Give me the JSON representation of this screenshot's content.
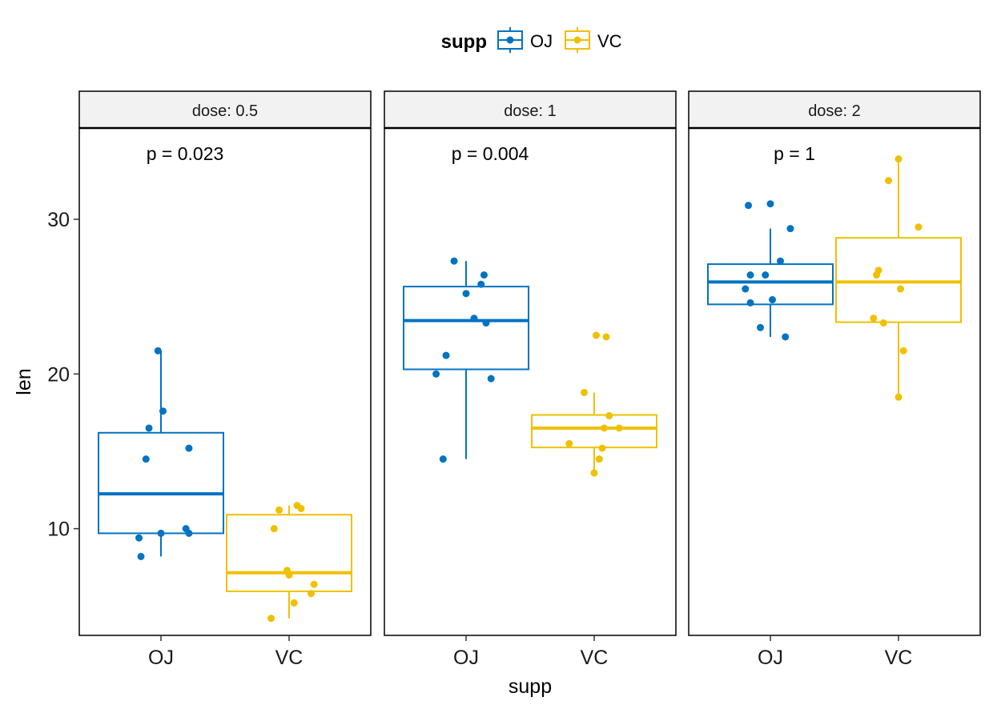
{
  "colors": {
    "OJ": "#0073C2",
    "VC": "#EFC000"
  },
  "legend": {
    "title": "supp",
    "items": [
      "OJ",
      "VC"
    ],
    "position": "top"
  },
  "chart_data": {
    "type": "boxplot",
    "xlabel": "supp",
    "ylabel": "len",
    "ylim": [
      3.1,
      35.9
    ],
    "yticks": [
      10,
      20,
      30
    ],
    "categories": [
      "OJ",
      "VC"
    ],
    "grid": false,
    "facets": [
      {
        "label": "dose: 0.5",
        "pvalue": "p = 0.023",
        "groups": [
          {
            "supp": "OJ",
            "whisker_low": 8.2,
            "q1": 9.7,
            "median": 12.25,
            "q3": 16.2,
            "whisker_high": 21.5,
            "points": [
              [
                -0.22,
                9.4
              ],
              [
                -0.2,
                8.2
              ],
              [
                -0.15,
                14.5
              ],
              [
                -0.12,
                16.5
              ],
              [
                0,
                9.7
              ],
              [
                0.02,
                17.6
              ],
              [
                0.25,
                10.0
              ],
              [
                0.28,
                9.7
              ],
              [
                0.28,
                15.2
              ],
              [
                -0.03,
                21.5
              ]
            ]
          },
          {
            "supp": "VC",
            "whisker_low": 4.2,
            "q1": 5.95,
            "median": 7.15,
            "q3": 10.9,
            "whisker_high": 11.5,
            "points": [
              [
                -0.18,
                4.2
              ],
              [
                -0.15,
                10.0
              ],
              [
                -0.1,
                11.2
              ],
              [
                -0.02,
                7.3
              ],
              [
                0,
                7.0
              ],
              [
                0.05,
                5.2
              ],
              [
                0.08,
                11.5
              ],
              [
                0.12,
                11.3
              ],
              [
                0.25,
                6.4
              ],
              [
                0.22,
                5.8
              ]
            ]
          }
        ]
      },
      {
        "label": "dose: 1",
        "pvalue": "p = 0.004",
        "groups": [
          {
            "supp": "OJ",
            "whisker_low": 14.5,
            "q1": 20.3,
            "median": 23.45,
            "q3": 25.65,
            "whisker_high": 27.3,
            "points": [
              [
                -0.3,
                20.0
              ],
              [
                -0.2,
                21.2
              ],
              [
                -0.23,
                14.5
              ],
              [
                -0.12,
                27.3
              ],
              [
                0,
                25.2
              ],
              [
                0.08,
                23.6
              ],
              [
                0.15,
                25.8
              ],
              [
                0.18,
                26.4
              ],
              [
                0.2,
                23.3
              ],
              [
                0.25,
                19.7
              ]
            ]
          },
          {
            "supp": "VC",
            "whisker_low": 13.6,
            "q1": 15.25,
            "median": 16.5,
            "q3": 17.35,
            "whisker_high": 18.8,
            "points": [
              [
                -0.25,
                15.5
              ],
              [
                -0.1,
                18.8
              ],
              [
                0,
                13.6
              ],
              [
                0.02,
                22.5
              ],
              [
                0.05,
                14.5
              ],
              [
                0.08,
                15.2
              ],
              [
                0.1,
                16.5
              ],
              [
                0.12,
                22.4
              ],
              [
                0.15,
                17.3
              ],
              [
                0.25,
                16.5
              ]
            ]
          }
        ]
      },
      {
        "label": "dose: 2",
        "pvalue": "p = 1",
        "groups": [
          {
            "supp": "OJ",
            "whisker_low": 22.4,
            "q1": 24.5,
            "median": 25.95,
            "q3": 27.1,
            "whisker_high": 29.4,
            "points": [
              [
                -0.25,
                25.5
              ],
              [
                -0.2,
                26.4
              ],
              [
                -0.2,
                24.6
              ],
              [
                -0.22,
                30.9
              ],
              [
                -0.1,
                23.0
              ],
              [
                -0.05,
                26.4
              ],
              [
                0,
                31.0
              ],
              [
                0.02,
                24.8
              ],
              [
                0.1,
                27.3
              ],
              [
                0.2,
                29.4
              ],
              [
                0.15,
                22.4
              ]
            ]
          },
          {
            "supp": "VC",
            "whisker_low": 18.5,
            "q1": 23.35,
            "median": 25.95,
            "q3": 28.8,
            "whisker_high": 33.9,
            "points": [
              [
                -0.25,
                23.6
              ],
              [
                -0.22,
                26.4
              ],
              [
                -0.2,
                26.7
              ],
              [
                -0.15,
                23.3
              ],
              [
                -0.1,
                32.5
              ],
              [
                0,
                33.9
              ],
              [
                0.02,
                25.5
              ],
              [
                0,
                18.5
              ],
              [
                0.05,
                21.5
              ],
              [
                0.2,
                29.5
              ]
            ]
          }
        ]
      }
    ]
  }
}
